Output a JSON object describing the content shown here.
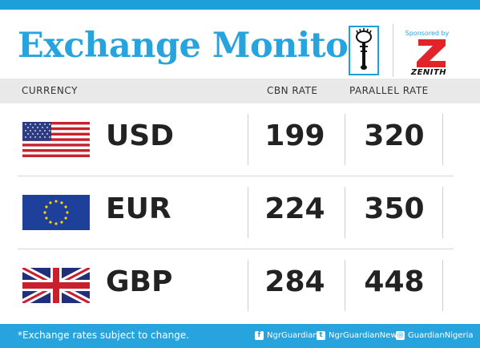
{
  "header": {
    "title": "Exchange Monitor",
    "sponsored_label": "Sponsored by",
    "sponsor_name": "ZENITH"
  },
  "columns": {
    "currency": "CURRENCY",
    "cbn_rate": "CBN RATE",
    "parallel_rate": "PARALLEL RATE"
  },
  "rates": [
    {
      "code": "USD",
      "flag": "us-flag-icon",
      "cbn": "199",
      "parallel": "320"
    },
    {
      "code": "EUR",
      "flag": "eu-flag-icon",
      "cbn": "224",
      "parallel": "350"
    },
    {
      "code": "GBP",
      "flag": "uk-flag-icon",
      "cbn": "284",
      "parallel": "448"
    }
  ],
  "footer": {
    "note": "*Exchange rates subject to change.",
    "facebook": "NgrGuardian",
    "twitter": "NgrGuardianNews",
    "instagram": "GuardianNigeria"
  },
  "colors": {
    "accent": "#27a4dd",
    "footer": "#27a4dd",
    "header_band": "#e9e9e9",
    "text": "#222222"
  }
}
